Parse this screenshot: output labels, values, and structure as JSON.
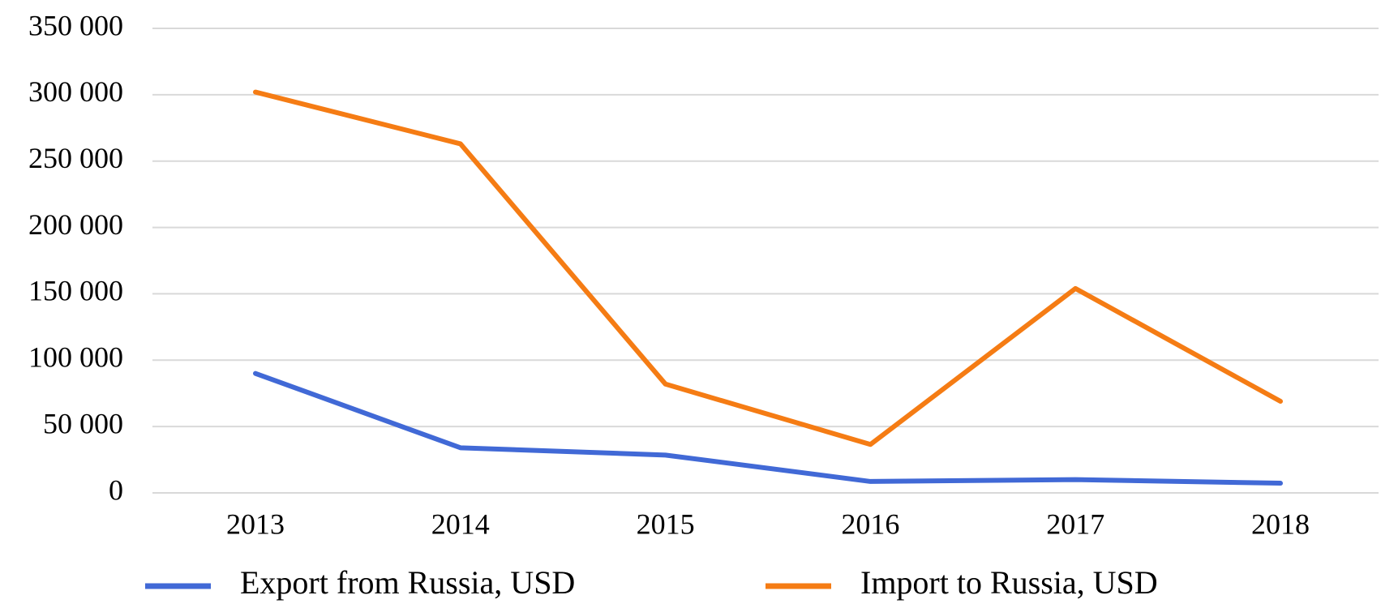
{
  "chart_data": {
    "type": "line",
    "categories": [
      "2013",
      "2014",
      "2015",
      "2016",
      "2017",
      "2018"
    ],
    "series": [
      {
        "name": "Export from Russia, USD",
        "color": "#4169d6",
        "values": [
          90000,
          34000,
          28500,
          8600,
          10000,
          7300
        ]
      },
      {
        "name": "Import to Russia, USD",
        "color": "#f57c14",
        "values": [
          302000,
          263000,
          82000,
          36500,
          154000,
          69000
        ]
      }
    ],
    "ylim": [
      0,
      350000
    ],
    "yticks": [
      0,
      {
        "value": 50000,
        "label": "50 000"
      },
      {
        "value": 100000,
        "label": "100 000"
      },
      {
        "value": 150000,
        "label": "150 000"
      },
      {
        "value": 200000,
        "label": "200 000"
      },
      {
        "value": 250000,
        "label": "250 000"
      },
      {
        "value": 300000,
        "label": "300 000"
      },
      {
        "value": 350000,
        "label": "350 000"
      }
    ],
    "grid": true,
    "legend": "bottom"
  }
}
